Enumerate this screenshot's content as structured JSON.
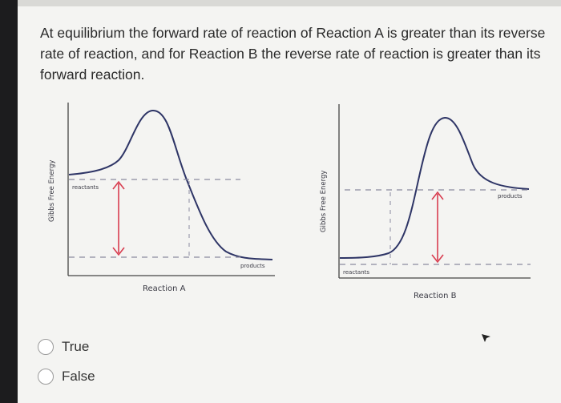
{
  "question": {
    "text": "At equilibrium the forward rate of reaction of Reaction A is greater than its reverse rate of reaction, and for Reaction B the reverse rate of reaction is greater than its forward reaction."
  },
  "diagram_a": {
    "y_axis_label": "Gibbs Free Energy",
    "x_axis_label": "Reaction  A",
    "start_label": "reactants",
    "end_label": "products"
  },
  "diagram_b": {
    "y_axis_label": "Gibbs Free Energy",
    "x_axis_label": "Reaction B",
    "start_label": "reactants",
    "end_label": "products"
  },
  "options": [
    {
      "label": "True",
      "selected": false
    },
    {
      "label": "False",
      "selected": false
    }
  ],
  "colors": {
    "curve": "#2e3566",
    "arrow": "#d83c4f",
    "dashed": "#8a8aa0"
  },
  "icons": {
    "pointer": "mouse-pointer-icon"
  }
}
